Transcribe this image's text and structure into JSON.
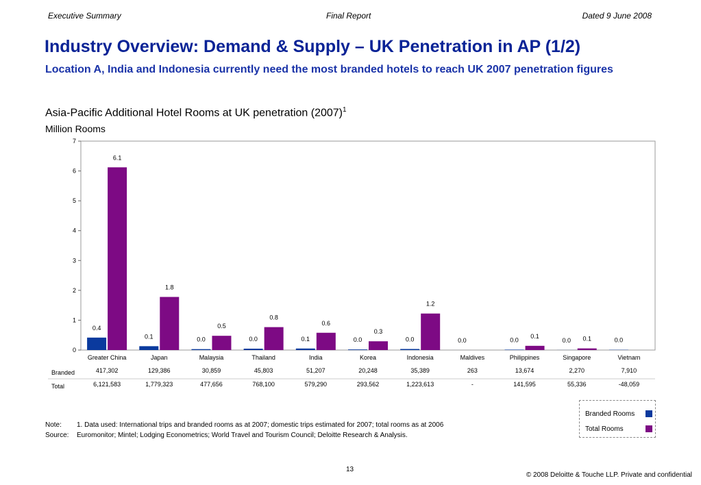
{
  "header": {
    "left": "Executive Summary",
    "center": "Final Report",
    "right": "Dated 9 June 2008"
  },
  "title": "Industry Overview: Demand & Supply – UK Penetration in AP (1/2)",
  "subtitle": "Location A, India and Indonesia currently need the most branded hotels to reach UK 2007 penetration figures",
  "chart_title": "Asia-Pacific Additional Hotel Rooms at UK penetration (2007)",
  "chart_title_sup": "1",
  "chart_unit": "Million Rooms",
  "colors": {
    "branded": "#0a3a9e",
    "total": "#7d0a84",
    "gridline": "#cccccc"
  },
  "chart_data": {
    "type": "bar",
    "title": "Asia-Pacific Additional Hotel Rooms at UK penetration (2007)",
    "ylabel": "Million Rooms",
    "xlabel": "",
    "ylim": [
      0,
      7
    ],
    "yticks": [
      "0",
      "1",
      "2",
      "3",
      "4",
      "5",
      "6",
      "7"
    ],
    "categories": [
      "Greater China",
      "Japan",
      "Malaysia",
      "Thailand",
      "India",
      "Korea",
      "Indonesia",
      "Maldives",
      "Philippines",
      "Singapore",
      "Vietnam"
    ],
    "series": [
      {
        "name": "Branded Rooms",
        "values": [
          0.417302,
          0.129386,
          0.030859,
          0.045803,
          0.051207,
          0.020248,
          0.035389,
          0.000263,
          0.013674,
          0.00227,
          0.00791
        ],
        "labels": [
          "0.4",
          "0.1",
          "0.0",
          "0.0",
          "0.1",
          "0.0",
          "0.0",
          "0.0",
          "0.0",
          "0.0",
          "0.0"
        ]
      },
      {
        "name": "Total Rooms",
        "values": [
          6.121583,
          1.779323,
          0.477656,
          0.7681,
          0.57929,
          0.293562,
          1.223613,
          0,
          0.141595,
          0.055336,
          -0.048059
        ],
        "labels": [
          "6.1",
          "1.8",
          "0.5",
          "0.8",
          "0.6",
          "0.3",
          "1.2",
          "",
          "0.1",
          "0.1",
          ""
        ]
      }
    ],
    "table": {
      "rows": [
        {
          "label": "Branded",
          "values": [
            "417,302",
            "129,386",
            "30,859",
            "45,803",
            "51,207",
            "20,248",
            "35,389",
            "263",
            "13,674",
            "2,270",
            "7,910"
          ]
        },
        {
          "label": "Total",
          "values": [
            "6,121,583",
            "1,779,323",
            "477,656",
            "768,100",
            "579,290",
            "293,562",
            "1,223,613",
            "-",
            "141,595",
            "55,336",
            "-48,059"
          ]
        }
      ]
    }
  },
  "legend": {
    "branded_label": "Branded Rooms",
    "total_label": "Total Rooms"
  },
  "note": {
    "note_label": "Note:",
    "note_text": "1. Data used: International trips and branded rooms as at 2007; domestic trips estimated for 2007; total rooms as at 2006",
    "source_label": "Source:",
    "source_text": "Euromonitor; Mintel; Lodging Econometrics; World Travel and Tourism Council; Deloitte Research & Analysis."
  },
  "page_number": "13",
  "copyright": "© 2008 Deloitte & Touche LLP. Private and confidential"
}
